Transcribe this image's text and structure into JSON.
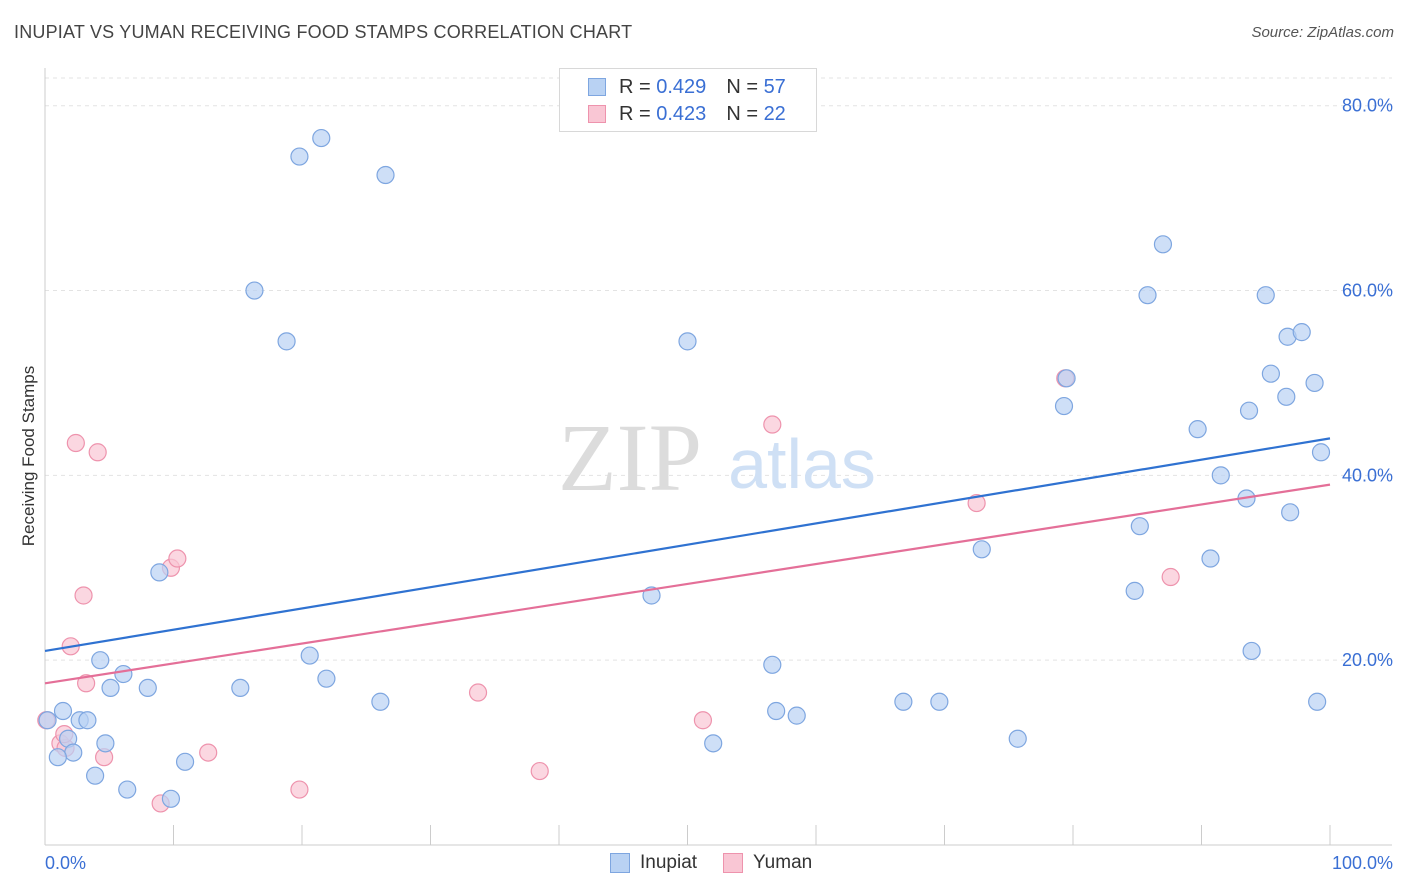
{
  "title": "INUPIAT VS YUMAN RECEIVING FOOD STAMPS CORRELATION CHART",
  "source": "Source: ZipAtlas.com",
  "watermark": {
    "zip": "ZIP",
    "atlas": "atlas"
  },
  "legend": {
    "rows": [
      {
        "r_label": "R = ",
        "r_value": "0.429",
        "n_label": "N = ",
        "n_value": "57"
      },
      {
        "r_label": "R = ",
        "r_value": "0.423",
        "n_label": "N = ",
        "n_value": "22"
      }
    ]
  },
  "colors": {
    "inupiat_fill": "#b9d2f3",
    "inupiat_stroke": "#7ea6e0",
    "inupiat_line": "#2f72d1",
    "yuman_fill": "#f9c6d4",
    "yuman_stroke": "#ee93ad",
    "yuman_line": "#e46f98",
    "axis_label": "#3a6fd4",
    "grid": "#e3e3e3"
  },
  "chart_data": {
    "type": "scatter",
    "title": "INUPIAT VS YUMAN RECEIVING FOOD STAMPS CORRELATION CHART",
    "xlabel": "",
    "ylabel": "Receiving Food Stamps",
    "xlim": [
      0,
      100
    ],
    "ylim": [
      0,
      83
    ],
    "x_tick_labels": [
      "0.0%",
      "100.0%"
    ],
    "y_ticks": [
      20,
      40,
      60,
      80
    ],
    "y_tick_labels": [
      "20.0%",
      "40.0%",
      "60.0%",
      "80.0%"
    ],
    "grid": true,
    "legend_position": "bottom-center",
    "series": [
      {
        "name": "Inupiat",
        "r": 0.429,
        "n": 57,
        "trend": {
          "x0": 0,
          "y0": 21.0,
          "x1": 100,
          "y1": 44.0
        },
        "points": [
          [
            0.2,
            13.5
          ],
          [
            1.4,
            14.5
          ],
          [
            1.8,
            11.5
          ],
          [
            2.2,
            10.0
          ],
          [
            2.7,
            13.5
          ],
          [
            3.3,
            13.5
          ],
          [
            3.9,
            7.5
          ],
          [
            4.3,
            20.0
          ],
          [
            4.7,
            11.0
          ],
          [
            5.1,
            17.0
          ],
          [
            6.1,
            18.5
          ],
          [
            6.4,
            6.0
          ],
          [
            8.0,
            17.0
          ],
          [
            8.9,
            29.5
          ],
          [
            9.8,
            5.0
          ],
          [
            10.9,
            9.0
          ],
          [
            15.2,
            17.0
          ],
          [
            16.3,
            60.0
          ],
          [
            18.8,
            54.5
          ],
          [
            19.8,
            74.5
          ],
          [
            20.6,
            20.5
          ],
          [
            21.5,
            76.5
          ],
          [
            21.9,
            18.0
          ],
          [
            26.1,
            15.5
          ],
          [
            26.5,
            72.5
          ],
          [
            47.2,
            27.0
          ],
          [
            50.0,
            54.5
          ],
          [
            52.0,
            11.0
          ],
          [
            56.6,
            19.5
          ],
          [
            56.9,
            14.5
          ],
          [
            58.5,
            14.0
          ],
          [
            66.8,
            15.5
          ],
          [
            69.6,
            15.5
          ],
          [
            72.9,
            32.0
          ],
          [
            75.7,
            11.5
          ],
          [
            79.3,
            47.5
          ],
          [
            79.5,
            50.5
          ],
          [
            84.8,
            27.5
          ],
          [
            85.2,
            34.5
          ],
          [
            85.8,
            59.5
          ],
          [
            87.0,
            65.0
          ],
          [
            89.7,
            45.0
          ],
          [
            90.7,
            31.0
          ],
          [
            91.5,
            40.0
          ],
          [
            93.5,
            37.5
          ],
          [
            93.7,
            47.0
          ],
          [
            93.9,
            21.0
          ],
          [
            95.0,
            59.5
          ],
          [
            95.4,
            51.0
          ],
          [
            96.6,
            48.5
          ],
          [
            96.7,
            55.0
          ],
          [
            96.9,
            36.0
          ],
          [
            97.8,
            55.5
          ],
          [
            98.8,
            50.0
          ],
          [
            99.0,
            15.5
          ],
          [
            99.3,
            42.5
          ],
          [
            1.0,
            9.5
          ]
        ]
      },
      {
        "name": "Yuman",
        "r": 0.423,
        "n": 22,
        "trend": {
          "x0": 0,
          "y0": 17.5,
          "x1": 100,
          "y1": 39.0
        },
        "points": [
          [
            0.1,
            13.5
          ],
          [
            1.2,
            11.0
          ],
          [
            1.6,
            10.5
          ],
          [
            2.0,
            21.5
          ],
          [
            2.4,
            43.5
          ],
          [
            3.0,
            27.0
          ],
          [
            3.2,
            17.5
          ],
          [
            4.1,
            42.5
          ],
          [
            4.6,
            9.5
          ],
          [
            9.0,
            4.5
          ],
          [
            9.8,
            30.0
          ],
          [
            10.3,
            31.0
          ],
          [
            12.7,
            10.0
          ],
          [
            19.8,
            6.0
          ],
          [
            33.7,
            16.5
          ],
          [
            38.5,
            8.0
          ],
          [
            51.2,
            13.5
          ],
          [
            56.6,
            45.5
          ],
          [
            72.5,
            37.0
          ],
          [
            79.4,
            50.5
          ],
          [
            87.6,
            29.0
          ],
          [
            1.5,
            12.0
          ]
        ]
      }
    ]
  },
  "bottom_legend": {
    "items": [
      "Inupiat",
      "Yuman"
    ]
  }
}
